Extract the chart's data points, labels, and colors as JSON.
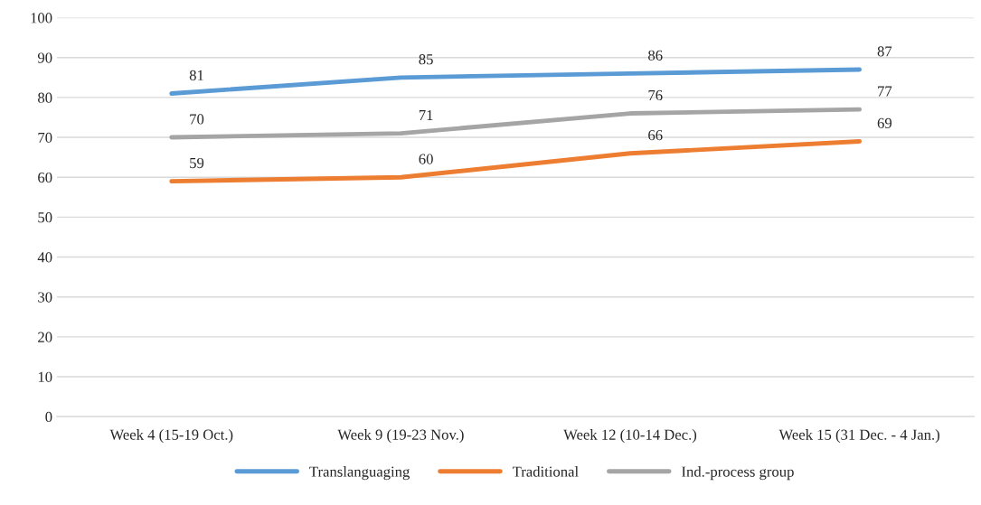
{
  "chart_data": {
    "type": "line",
    "categories": [
      "Week 4 (15-19 Oct.)",
      "Week 9 (19-23 Nov.)",
      "Week 12 (10-14 Dec.)",
      "Week 15 (31 Dec. - 4 Jan.)"
    ],
    "series": [
      {
        "name": "Translanguaging",
        "color": "#5b9bd5",
        "values": [
          81,
          85,
          86,
          87
        ]
      },
      {
        "name": "Traditional",
        "color": "#ed7d31",
        "values": [
          59,
          60,
          66,
          69
        ]
      },
      {
        "name": "Ind.-process group",
        "color": "#a5a5a5",
        "values": [
          70,
          71,
          76,
          77
        ]
      }
    ],
    "ylim": [
      0,
      100
    ],
    "yticks": [
      0,
      10,
      20,
      30,
      40,
      50,
      60,
      70,
      80,
      90,
      100
    ],
    "grid": "y",
    "legend": "bottom",
    "data_labels": true,
    "marker": "none",
    "line_style": "solid"
  }
}
